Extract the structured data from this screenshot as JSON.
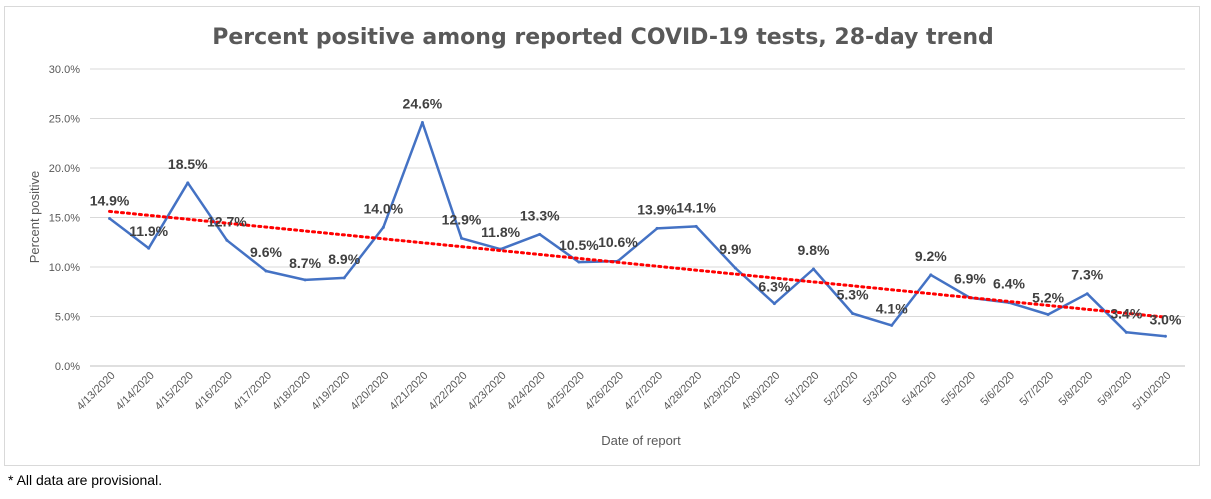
{
  "footnote": "* All data are provisional.",
  "chart_data": {
    "type": "line",
    "title": "Percent positive among reported COVID-19 tests, 28-day trend",
    "xlabel": "Date of report",
    "ylabel": "Percent positive",
    "ylim": [
      0,
      30
    ],
    "yticks": [
      "0.0%",
      "5.0%",
      "10.0%",
      "15.0%",
      "20.0%",
      "25.0%",
      "30.0%"
    ],
    "grid": true,
    "categories": [
      "4/13/2020",
      "4/14/2020",
      "4/15/2020",
      "4/16/2020",
      "4/17/2020",
      "4/18/2020",
      "4/19/2020",
      "4/20/2020",
      "4/21/2020",
      "4/22/2020",
      "4/23/2020",
      "4/24/2020",
      "4/25/2020",
      "4/26/2020",
      "4/27/2020",
      "4/28/2020",
      "4/29/2020",
      "4/30/2020",
      "5/1/2020",
      "5/2/2020",
      "5/3/2020",
      "5/4/2020",
      "5/5/2020",
      "5/6/2020",
      "5/7/2020",
      "5/8/2020",
      "5/9/2020",
      "5/10/2020"
    ],
    "series": [
      {
        "values": [
          14.9,
          11.9,
          18.5,
          12.7,
          9.6,
          8.7,
          8.9,
          14.0,
          24.6,
          12.9,
          11.8,
          13.3,
          10.5,
          10.6,
          13.9,
          14.1,
          9.9,
          6.3,
          9.8,
          5.3,
          4.1,
          9.2,
          6.9,
          6.4,
          5.2,
          7.3,
          3.4,
          3.0
        ],
        "data_labels": [
          "14.9%",
          "11.9%",
          "18.5%",
          "12.7%",
          "9.6%",
          "8.7%",
          "8.9%",
          "14.0%",
          "24.6%",
          "12.9%",
          "11.8%",
          "13.3%",
          "10.5%",
          "10.6%",
          "13.9%",
          "14.1%",
          "9.9%",
          "6.3%",
          "9.8%",
          "5.3%",
          "4.1%",
          "9.2%",
          "6.9%",
          "6.4%",
          "5.2%",
          "7.3%",
          "3.4%",
          "3.0%"
        ],
        "color": "#4472c4"
      }
    ],
    "trendline": {
      "type": "linear",
      "color": "#ff0000",
      "style": "dotted"
    }
  }
}
